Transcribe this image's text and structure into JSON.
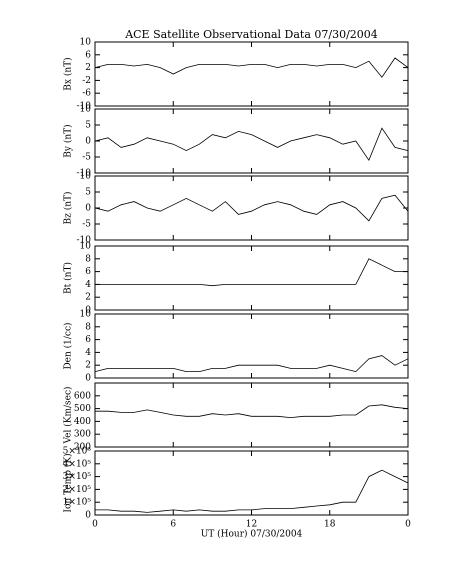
{
  "chart_data": [
    {
      "type": "line",
      "title": "ACE Satellite Observational Data   07/30/2004",
      "ylabel": "Bx (nT)",
      "color": "#000000",
      "x": [
        0,
        1,
        2,
        3,
        4,
        5,
        6,
        7,
        8,
        9,
        10,
        11,
        12,
        13,
        14,
        15,
        16,
        17,
        18,
        19,
        20,
        21,
        22,
        23,
        24
      ],
      "values": [
        2,
        3,
        3,
        2.5,
        3,
        2,
        0,
        2,
        3,
        3,
        3,
        2.5,
        3,
        3,
        2,
        3,
        3,
        2.5,
        3,
        3,
        2,
        4,
        -1,
        5,
        2
      ],
      "xlim": [
        0,
        24
      ],
      "xticks": [
        0,
        6,
        12,
        18,
        {
          "value": 24,
          "label": "0"
        }
      ],
      "ylim": [
        -10,
        10
      ],
      "yticks": [
        -10,
        -6,
        -2,
        2,
        6,
        10
      ]
    },
    {
      "type": "line",
      "ylabel": "By (nT)",
      "color": "#000000",
      "x": [
        0,
        1,
        2,
        3,
        4,
        5,
        6,
        7,
        8,
        9,
        10,
        11,
        12,
        13,
        14,
        15,
        16,
        17,
        18,
        19,
        20,
        21,
        22,
        23,
        24
      ],
      "values": [
        0,
        1,
        -2,
        -1,
        1,
        0,
        -1,
        -3,
        -1,
        2,
        1,
        3,
        2,
        0,
        -2,
        0,
        1,
        2,
        1,
        -1,
        0,
        -6,
        4,
        -2,
        -3
      ],
      "xlim": [
        0,
        24
      ],
      "xticks": [
        0,
        6,
        12,
        18,
        {
          "value": 24,
          "label": "0"
        }
      ],
      "ylim": [
        -10,
        10
      ],
      "yticks": [
        -10,
        -5,
        0,
        5,
        10
      ]
    },
    {
      "type": "line",
      "ylabel": "Bz (nT)",
      "color": "#000000",
      "x": [
        0,
        1,
        2,
        3,
        4,
        5,
        6,
        7,
        8,
        9,
        10,
        11,
        12,
        13,
        14,
        15,
        16,
        17,
        18,
        19,
        20,
        21,
        22,
        23,
        24
      ],
      "values": [
        0,
        -1,
        1,
        2,
        0,
        -1,
        1,
        3,
        1,
        -1,
        2,
        -2,
        -1,
        1,
        2,
        1,
        -1,
        -2,
        1,
        2,
        0,
        -4,
        3,
        4,
        -1
      ],
      "xlim": [
        0,
        24
      ],
      "xticks": [
        0,
        6,
        12,
        18,
        {
          "value": 24,
          "label": "0"
        }
      ],
      "ylim": [
        -10,
        10
      ],
      "yticks": [
        -10,
        -5,
        0,
        5,
        10
      ]
    },
    {
      "type": "line",
      "ylabel": "Bt (nT)",
      "color": "#000000",
      "x": [
        0,
        1,
        2,
        3,
        4,
        5,
        6,
        7,
        8,
        9,
        10,
        11,
        12,
        13,
        14,
        15,
        16,
        17,
        18,
        19,
        20,
        21,
        22,
        23,
        24
      ],
      "values": [
        4,
        4,
        4,
        4,
        4,
        4,
        4,
        4,
        4,
        3.8,
        4,
        4,
        4,
        4,
        4,
        4,
        4,
        4,
        4,
        4,
        4,
        8,
        7,
        6,
        6
      ],
      "xlim": [
        0,
        24
      ],
      "xticks": [
        0,
        6,
        12,
        18,
        {
          "value": 24,
          "label": "0"
        }
      ],
      "ylim": [
        0,
        10
      ],
      "yticks": [
        0,
        2,
        4,
        6,
        8,
        10
      ]
    },
    {
      "type": "line",
      "ylabel": "Den (1/cc)",
      "color": "#000000",
      "x": [
        0,
        1,
        2,
        3,
        4,
        5,
        6,
        7,
        8,
        9,
        10,
        11,
        12,
        13,
        14,
        15,
        16,
        17,
        18,
        19,
        20,
        21,
        22,
        23,
        24
      ],
      "values": [
        1,
        1.5,
        1.5,
        1.5,
        1.5,
        1.5,
        1.5,
        1,
        1,
        1.5,
        1.5,
        2,
        2,
        2,
        2,
        1.5,
        1.5,
        1.5,
        2,
        1.5,
        1,
        3,
        3.5,
        2,
        3
      ],
      "xlim": [
        0,
        24
      ],
      "xticks": [
        0,
        6,
        12,
        18,
        {
          "value": 24,
          "label": "0"
        }
      ],
      "ylim": [
        0,
        10
      ],
      "yticks": [
        0,
        2,
        4,
        6,
        8,
        10
      ]
    },
    {
      "type": "line",
      "ylabel": "Vel (Km/sec)",
      "color": "#000000",
      "x": [
        0,
        1,
        2,
        3,
        4,
        5,
        6,
        7,
        8,
        9,
        10,
        11,
        12,
        13,
        14,
        15,
        16,
        17,
        18,
        19,
        20,
        21,
        22,
        23,
        24
      ],
      "values": [
        480,
        480,
        470,
        470,
        490,
        470,
        450,
        440,
        440,
        460,
        450,
        460,
        440,
        440,
        440,
        430,
        440,
        440,
        440,
        450,
        450,
        520,
        530,
        510,
        500
      ],
      "xlim": [
        0,
        24
      ],
      "xticks": [
        0,
        6,
        12,
        18,
        {
          "value": 24,
          "label": "0"
        }
      ],
      "ylim": [
        200,
        700
      ],
      "yticks": [
        200,
        300,
        400,
        500,
        600
      ]
    },
    {
      "type": "line",
      "ylabel": "Ion Temp (K)",
      "xlabel": "UT (Hour)   07/30/2004",
      "color": "#000000",
      "x": [
        0,
        1,
        2,
        3,
        4,
        5,
        6,
        7,
        8,
        9,
        10,
        11,
        12,
        13,
        14,
        15,
        16,
        17,
        18,
        19,
        20,
        21,
        22,
        23,
        24
      ],
      "values": [
        40000,
        40000,
        30000,
        30000,
        20000,
        30000,
        40000,
        30000,
        40000,
        30000,
        30000,
        40000,
        40000,
        50000,
        50000,
        50000,
        60000,
        70000,
        80000,
        100000,
        100000,
        300000,
        350000,
        300000,
        250000
      ],
      "xlim": [
        0,
        24
      ],
      "xticks": [
        0,
        6,
        12,
        18,
        {
          "value": 24,
          "label": "0"
        }
      ],
      "ylim": [
        0,
        500000
      ],
      "yticks": [
        0,
        {
          "value": 100000,
          "label": "1×10⁵"
        },
        {
          "value": 200000,
          "label": "2×10⁵"
        },
        {
          "value": 300000,
          "label": "3×10⁵"
        },
        {
          "value": 400000,
          "label": "4×10⁵"
        },
        {
          "value": 500000,
          "label": "5×10⁵"
        }
      ]
    }
  ]
}
